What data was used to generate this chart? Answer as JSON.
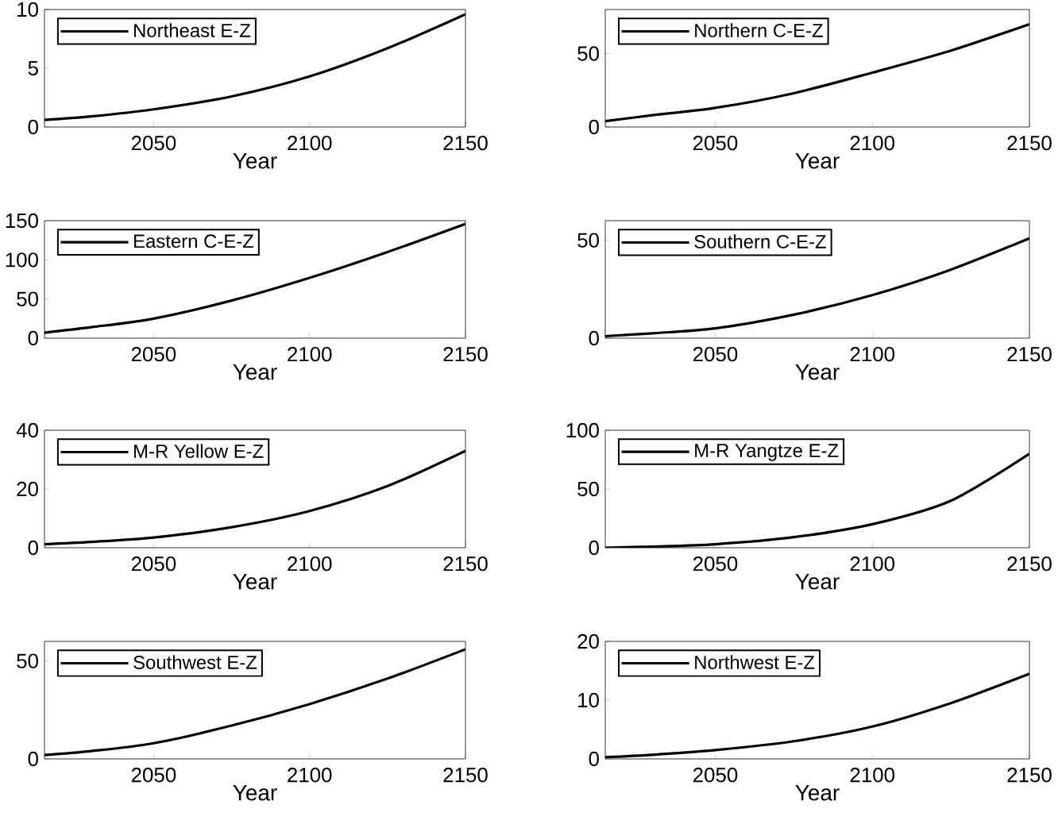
{
  "chart_data": [
    {
      "type": "line",
      "x": [
        2015,
        2030,
        2050,
        2075,
        2100,
        2125,
        2150
      ],
      "xlim": [
        2015,
        2150
      ],
      "xticks": [
        2050,
        2100,
        2150
      ],
      "ylim": [
        0,
        10
      ],
      "yticks": [
        0,
        5,
        10
      ],
      "xlabel": "Year",
      "legend": "top left",
      "series": [
        {
          "name": "Northeast E-Z",
          "color": "#000000",
          "values": [
            0.6,
            0.9,
            1.5,
            2.6,
            4.3,
            6.7,
            9.6
          ]
        }
      ]
    },
    {
      "type": "line",
      "x": [
        2015,
        2030,
        2050,
        2075,
        2100,
        2125,
        2150
      ],
      "xlim": [
        2015,
        2150
      ],
      "xticks": [
        2050,
        2100,
        2150
      ],
      "ylim": [
        0,
        80
      ],
      "yticks": [
        0,
        50
      ],
      "xlabel": "Year",
      "legend": "top left",
      "series": [
        {
          "name": "Northern C-E-Z",
          "color": "#000000",
          "values": [
            4,
            8,
            13,
            23,
            37,
            52,
            70
          ]
        }
      ]
    },
    {
      "type": "line",
      "x": [
        2015,
        2030,
        2050,
        2075,
        2100,
        2125,
        2150
      ],
      "xlim": [
        2015,
        2150
      ],
      "xticks": [
        2050,
        2100,
        2150
      ],
      "ylim": [
        0,
        150
      ],
      "yticks": [
        0,
        50,
        100,
        150
      ],
      "xlabel": "Year",
      "legend": "top left",
      "series": [
        {
          "name": "Eastern C-E-Z",
          "color": "#000000",
          "values": [
            7,
            14,
            25,
            48,
            77,
            110,
            146
          ]
        }
      ]
    },
    {
      "type": "line",
      "x": [
        2015,
        2030,
        2050,
        2075,
        2100,
        2125,
        2150
      ],
      "xlim": [
        2015,
        2150
      ],
      "xticks": [
        2050,
        2100,
        2150
      ],
      "ylim": [
        0,
        60
      ],
      "yticks": [
        0,
        50
      ],
      "xlabel": "Year",
      "legend": "top left",
      "series": [
        {
          "name": "Southern C-E-Z",
          "color": "#000000",
          "values": [
            1,
            2.5,
            5,
            12,
            22,
            35,
            51
          ]
        }
      ]
    },
    {
      "type": "line",
      "x": [
        2015,
        2030,
        2050,
        2075,
        2100,
        2125,
        2150
      ],
      "xlim": [
        2015,
        2150
      ],
      "xticks": [
        2050,
        2100,
        2150
      ],
      "ylim": [
        0,
        40
      ],
      "yticks": [
        0,
        20,
        40
      ],
      "xlabel": "Year",
      "legend": "top left",
      "series": [
        {
          "name": "M-R Yellow E-Z",
          "color": "#000000",
          "values": [
            1.2,
            2,
            3.5,
            7,
            12.5,
            21,
            33
          ]
        }
      ]
    },
    {
      "type": "line",
      "x": [
        2015,
        2030,
        2050,
        2075,
        2100,
        2125,
        2150
      ],
      "xlim": [
        2015,
        2150
      ],
      "xticks": [
        2050,
        2100,
        2150
      ],
      "ylim": [
        0,
        100
      ],
      "yticks": [
        0,
        50,
        100
      ],
      "xlabel": "Year",
      "legend": "top left",
      "series": [
        {
          "name": "M-R Yangtze E-Z",
          "color": "#000000",
          "values": [
            0,
            1,
            3,
            9,
            20,
            40,
            80
          ]
        }
      ]
    },
    {
      "type": "line",
      "x": [
        2015,
        2030,
        2050,
        2075,
        2100,
        2125,
        2150
      ],
      "xlim": [
        2015,
        2150
      ],
      "xticks": [
        2050,
        2100,
        2150
      ],
      "ylim": [
        0,
        60
      ],
      "yticks": [
        0,
        50
      ],
      "xlabel": "Year",
      "legend": "top left",
      "series": [
        {
          "name": "Southwest E-Z",
          "color": "#000000",
          "values": [
            2,
            4,
            8,
            17,
            28,
            41,
            56
          ]
        }
      ]
    },
    {
      "type": "line",
      "x": [
        2015,
        2030,
        2050,
        2075,
        2100,
        2125,
        2150
      ],
      "xlim": [
        2015,
        2150
      ],
      "xticks": [
        2050,
        2100,
        2150
      ],
      "ylim": [
        0,
        20
      ],
      "yticks": [
        0,
        10,
        20
      ],
      "xlabel": "Year",
      "legend": "top left",
      "series": [
        {
          "name": "Northwest E-Z",
          "color": "#000000",
          "values": [
            0.3,
            0.7,
            1.5,
            3,
            5.5,
            9.5,
            14.5
          ]
        }
      ]
    }
  ]
}
